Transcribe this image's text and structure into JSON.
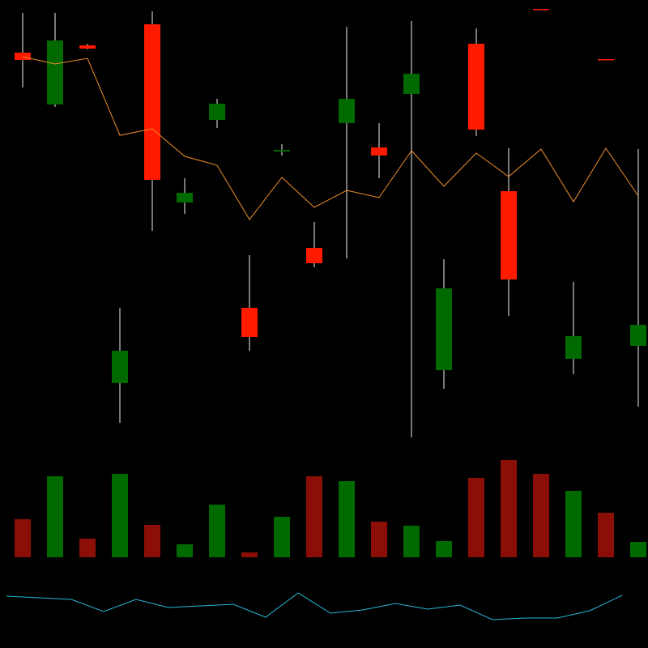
{
  "chart_data": [
    {
      "type": "candlestick",
      "up_color": "#006a00",
      "down_color": "#ff1a00",
      "wick_color": "#c8c8c8",
      "ylim": [
        0,
        800
      ],
      "open": [
        735,
        671,
        744,
        327,
        770,
        550,
        652,
        420,
        613,
        494,
        648,
        618,
        684,
        343,
        746,
        564,
        789,
        357,
        727,
        373
      ],
      "high": [
        784,
        784,
        746,
        420,
        786,
        580,
        678,
        485,
        622,
        526,
        767,
        648,
        774,
        480,
        765,
        617,
        789,
        452,
        727,
        616
      ],
      "low": [
        692,
        668,
        739,
        278,
        515,
        536,
        642,
        367,
        608,
        470,
        481,
        580,
        260,
        320,
        632,
        410,
        788,
        338,
        726,
        298
      ],
      "close": [
        726,
        750,
        740,
        367,
        578,
        562,
        672,
        384,
        615,
        475,
        678,
        608,
        709,
        444,
        640,
        455,
        788,
        385,
        726,
        399
      ],
      "line": {
        "color": "#f0902a",
        "values": [
          730,
          721,
          728,
          633,
          641,
          607,
          596,
          529,
          581,
          544,
          565,
          556,
          614,
          570,
          611,
          582,
          616,
          551,
          617,
          558
        ]
      }
    },
    {
      "type": "bar",
      "ylim": [
        0,
        688
      ],
      "up_color": "#006a00",
      "down_color": "#8b0f06",
      "values": [
        47,
        100,
        23,
        103,
        40,
        16,
        65,
        6,
        50,
        100,
        94,
        44,
        39,
        20,
        98,
        120,
        103,
        82,
        55,
        19
      ],
      "up": [
        false,
        true,
        false,
        true,
        false,
        true,
        true,
        false,
        true,
        false,
        true,
        false,
        true,
        true,
        false,
        false,
        false,
        true,
        false,
        true
      ]
    },
    {
      "type": "line",
      "ylim": [
        0,
        100
      ],
      "color": "#29b6d6",
      "values": [
        64,
        62,
        60,
        45,
        60,
        50,
        52,
        54,
        38,
        68,
        43,
        47,
        55,
        48,
        53,
        35,
        37,
        37,
        46,
        65
      ]
    }
  ]
}
